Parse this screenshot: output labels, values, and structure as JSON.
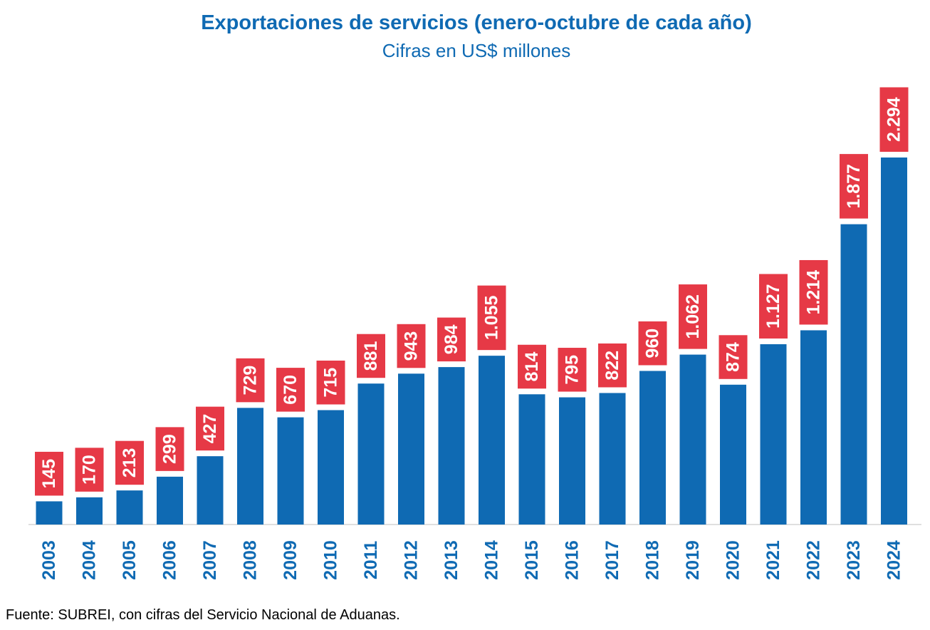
{
  "chart_data": {
    "type": "bar",
    "title": "Exportaciones de servicios (enero-octubre de cada año)",
    "subtitle": "Cifras en US$ millones",
    "categories": [
      "2003",
      "2004",
      "2005",
      "2006",
      "2007",
      "2008",
      "2009",
      "2010",
      "2011",
      "2012",
      "2013",
      "2014",
      "2015",
      "2016",
      "2017",
      "2018",
      "2019",
      "2020",
      "2021",
      "2022",
      "2023",
      "2024"
    ],
    "values": [
      145,
      170,
      213,
      299,
      427,
      729,
      670,
      715,
      881,
      943,
      984,
      1055,
      814,
      795,
      822,
      960,
      1062,
      874,
      1127,
      1214,
      1877,
      2294
    ],
    "data_labels": [
      "145",
      "170",
      "213",
      "299",
      "427",
      "729",
      "670",
      "715",
      "881",
      "943",
      "984",
      "1.055",
      "814",
      "795",
      "822",
      "960",
      "1.062",
      "874",
      "1.127",
      "1.214",
      "1.877",
      "2.294"
    ],
    "xlabel": "",
    "ylabel": "",
    "ylim": [
      0,
      2600
    ],
    "grid": false,
    "legend": "none",
    "bar_color": "#0f6ab3",
    "label_box_color": "#e63946",
    "label_text_color": "#ffffff",
    "axis_label_color": "#0f6ab3"
  },
  "footer": {
    "source": "Fuente: SUBREI, con cifras del Servicio Nacional de Aduanas."
  }
}
